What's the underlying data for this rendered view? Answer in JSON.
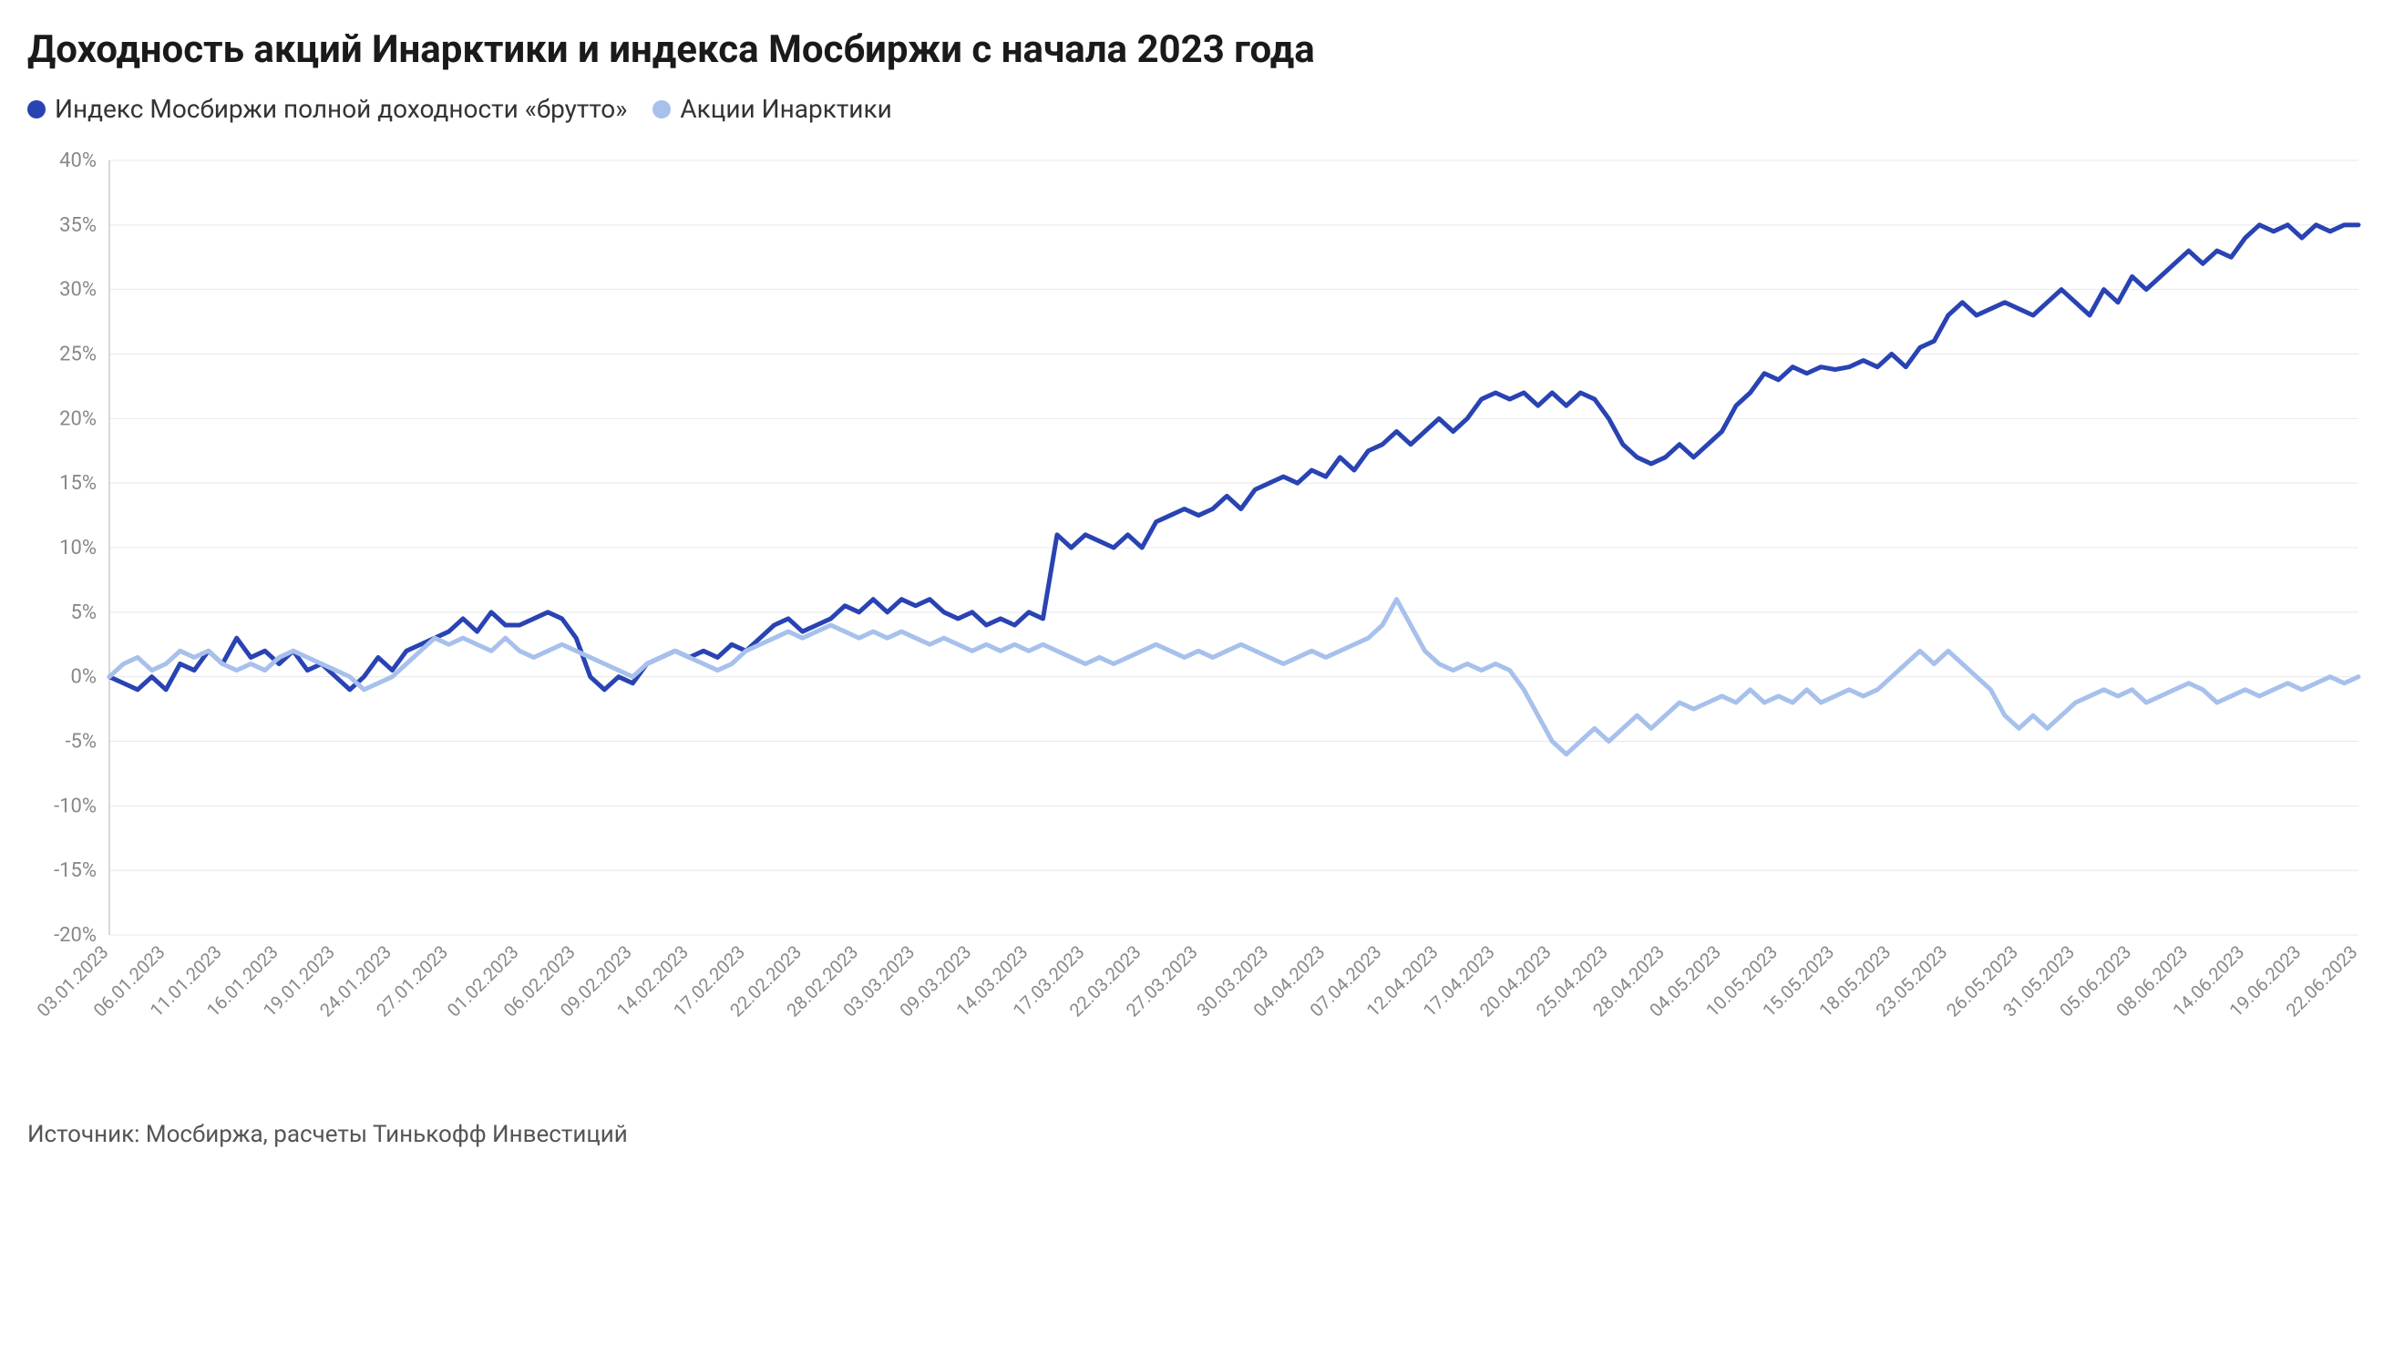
{
  "title": "Доходность акций Инарктики и индекса Мосбиржи с начала 2023 года",
  "source": "Источник: Мосбиржа, расчеты Тинькофф Инвестиций",
  "legend": [
    {
      "label": "Индекс Мосбиржи полной доходности «брутто»",
      "color": "#2943b3"
    },
    {
      "label": "Акции Инарктики",
      "color": "#a7c0ec"
    }
  ],
  "chart": {
    "type": "line",
    "background_color": "#ffffff",
    "grid_color": "#e8e8e8",
    "axis_color": "#cccccc",
    "tick_color": "#888888",
    "ylim": [
      -20,
      40
    ],
    "ytick_step": 5,
    "y_suffix": "%",
    "line_width": 5,
    "x_labels": [
      "03.01.2023",
      "06.01.2023",
      "11.01.2023",
      "16.01.2023",
      "19.01.2023",
      "24.01.2023",
      "27.01.2023",
      "01.02.2023",
      "06.02.2023",
      "09.02.2023",
      "14.02.2023",
      "17.02.2023",
      "22.02.2023",
      "28.02.2023",
      "03.03.2023",
      "09.03.2023",
      "14.03.2023",
      "17.03.2023",
      "22.03.2023",
      "27.03.2023",
      "30.03.2023",
      "04.04.2023",
      "07.04.2023",
      "12.04.2023",
      "17.04.2023",
      "20.04.2023",
      "25.04.2023",
      "28.04.2023",
      "04.05.2023",
      "10.05.2023",
      "15.05.2023",
      "18.05.2023",
      "23.05.2023",
      "26.05.2023",
      "31.05.2023",
      "05.06.2023",
      "08.06.2023",
      "14.06.2023",
      "19.06.2023",
      "22.06.2023"
    ],
    "series": [
      {
        "name": "Индекс Мосбиржи полной доходности «брутто»",
        "color": "#2943b3",
        "values": [
          0,
          -0.5,
          -1,
          0,
          -1,
          1,
          0.5,
          2,
          1,
          3,
          1.5,
          2,
          1,
          2,
          0.5,
          1,
          0,
          -1,
          0,
          1.5,
          0.5,
          2,
          2.5,
          3,
          3.5,
          4.5,
          3.5,
          5,
          4,
          4,
          4.5,
          5,
          4.5,
          3,
          0,
          -1,
          0,
          -0.5,
          1,
          1.5,
          2,
          1.5,
          2,
          1.5,
          2.5,
          2,
          3,
          4,
          4.5,
          3.5,
          4,
          4.5,
          5.5,
          5,
          6,
          5,
          6,
          5.5,
          6,
          5,
          4.5,
          5,
          4,
          4.5,
          4,
          5,
          4.5,
          11,
          10,
          11,
          10.5,
          10,
          11,
          10,
          12,
          12.5,
          13,
          12.5,
          13,
          14,
          13,
          14.5,
          15,
          15.5,
          15,
          16,
          15.5,
          17,
          16,
          17.5,
          18,
          19,
          18,
          19,
          20,
          19,
          20,
          21.5,
          22,
          21.5,
          22,
          21,
          22,
          21,
          22,
          21.5,
          20,
          18,
          17,
          16.5,
          17,
          18,
          17,
          18,
          19,
          21,
          22,
          23.5,
          23,
          24,
          23.5,
          24,
          23.8,
          24,
          24.5,
          24,
          25,
          24,
          25.5,
          26,
          28,
          29,
          28,
          28.5,
          29,
          28.5,
          28,
          29,
          30,
          29,
          28,
          30,
          29,
          31,
          30,
          31,
          32,
          33,
          32,
          33,
          32.5,
          34,
          35,
          34.5,
          35,
          34,
          35,
          34.5,
          35,
          35
        ]
      },
      {
        "name": "Акции Инарктики",
        "color": "#a7c0ec",
        "values": [
          0,
          1,
          1.5,
          0.5,
          1,
          2,
          1.5,
          2,
          1,
          0.5,
          1,
          0.5,
          1.5,
          2,
          1.5,
          1,
          0.5,
          0,
          -1,
          -0.5,
          0,
          1,
          2,
          3,
          2.5,
          3,
          2.5,
          2,
          3,
          2,
          1.5,
          2,
          2.5,
          2,
          1.5,
          1,
          0.5,
          0,
          1,
          1.5,
          2,
          1.5,
          1,
          0.5,
          1,
          2,
          2.5,
          3,
          3.5,
          3,
          3.5,
          4,
          3.5,
          3,
          3.5,
          3,
          3.5,
          3,
          2.5,
          3,
          2.5,
          2,
          2.5,
          2,
          2.5,
          2,
          2.5,
          2,
          1.5,
          1,
          1.5,
          1,
          1.5,
          2,
          2.5,
          2,
          1.5,
          2,
          1.5,
          2,
          2.5,
          2,
          1.5,
          1,
          1.5,
          2,
          1.5,
          2,
          2.5,
          3,
          4,
          6,
          4,
          2,
          1,
          0.5,
          1,
          0.5,
          1,
          0.5,
          -1,
          -3,
          -5,
          -6,
          -5,
          -4,
          -5,
          -4,
          -3,
          -4,
          -3,
          -2,
          -2.5,
          -2,
          -1.5,
          -2,
          -1,
          -2,
          -1.5,
          -2,
          -1,
          -2,
          -1.5,
          -1,
          -1.5,
          -1,
          0,
          1,
          2,
          1,
          2,
          1,
          0,
          -1,
          -3,
          -4,
          -3,
          -4,
          -3,
          -2,
          -1.5,
          -1,
          -1.5,
          -1,
          -2,
          -1.5,
          -1,
          -0.5,
          -1,
          -2,
          -1.5,
          -1,
          -1.5,
          -1,
          -0.5,
          -1,
          -0.5,
          0,
          -0.5,
          0
        ]
      }
    ]
  }
}
